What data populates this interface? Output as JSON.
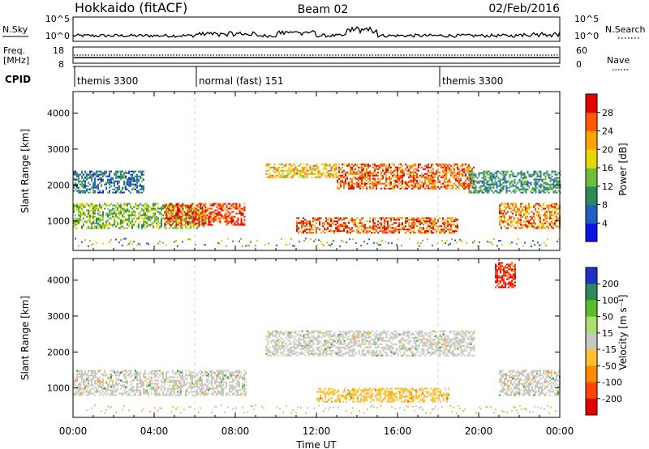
{
  "header": {
    "title": "Hokkaido (fitACF)",
    "beam": "Beam 02",
    "date": "02/Feb/2016"
  },
  "noise_panel": {
    "left_label": "N.Sky",
    "right_label": "N.Search",
    "left_ticks": [
      "10^5",
      "10^0"
    ],
    "right_ticks": [
      "10^5",
      "10^0"
    ]
  },
  "freq_panel": {
    "left_label_1": "Freq.",
    "left_label_2": "[MHz]",
    "right_label": "Nave",
    "left_ticks": [
      "18",
      "8"
    ],
    "right_ticks": [
      "60",
      "0"
    ]
  },
  "cpid_panel": {
    "label": "CPID",
    "modes": [
      {
        "name": "themis 3300",
        "start_hour": 0
      },
      {
        "name": "normal (fast) 151",
        "start_hour": 6
      },
      {
        "name": "themis 3300",
        "start_hour": 18
      }
    ]
  },
  "time_axis": {
    "title": "Time UT",
    "labels": [
      "00:00",
      "04:00",
      "08:00",
      "12:00",
      "16:00",
      "20:00",
      "00:00"
    ]
  },
  "range_axis": {
    "title": "Slant Range [km]",
    "labels": [
      "1000",
      "2000",
      "3000",
      "4000"
    ]
  },
  "power_colorbar": {
    "title": "Power [dB]",
    "labels": [
      "4",
      "8",
      "12",
      "16",
      "20",
      "24",
      "28"
    ],
    "colors": [
      "#0a14e6",
      "#2060c0",
      "#2e8b57",
      "#6fbf3f",
      "#e8d800",
      "#ffa500",
      "#ff5a00",
      "#e60000"
    ]
  },
  "velocity_colorbar": {
    "title": "Velocity [m s⁻¹]",
    "labels": [
      "200",
      "100",
      "50",
      "15",
      "-15",
      "-50",
      "-100",
      "-200"
    ],
    "colors": [
      "#1e32c8",
      "#2e8b57",
      "#5abe2a",
      "#a8e070",
      "#c8c8c0",
      "#ffc030",
      "#ff8c00",
      "#ff4500",
      "#e60000"
    ]
  },
  "chart_data": [
    {
      "type": "heatmap",
      "title": "Power",
      "xlabel": "Time UT",
      "ylabel": "Slant Range [km]",
      "xlim": [
        0,
        24
      ],
      "ylim": [
        180,
        4600
      ],
      "colorbar_label": "Power [dB]",
      "echo_regions": [
        {
          "t_start": 0.0,
          "t_end": 6.5,
          "range_low": 800,
          "range_high": 1500,
          "power_db": 14
        },
        {
          "t_start": 4.5,
          "t_end": 8.5,
          "range_low": 900,
          "range_high": 1500,
          "power_db": 28
        },
        {
          "t_start": 0.0,
          "t_end": 3.5,
          "range_low": 1800,
          "range_high": 2400,
          "power_db": 8
        },
        {
          "t_start": 9.5,
          "t_end": 13.0,
          "range_low": 2200,
          "range_high": 2600,
          "power_db": 20
        },
        {
          "t_start": 13.0,
          "t_end": 19.8,
          "range_low": 1900,
          "range_high": 2600,
          "power_db": 26
        },
        {
          "t_start": 11.0,
          "t_end": 19.0,
          "range_low": 650,
          "range_high": 1100,
          "power_db": 26
        },
        {
          "t_start": 21.0,
          "t_end": 24.0,
          "range_low": 800,
          "range_high": 1500,
          "power_db": 24
        },
        {
          "t_start": 19.5,
          "t_end": 24.0,
          "range_low": 1800,
          "range_high": 2400,
          "power_db": 10
        }
      ]
    },
    {
      "type": "heatmap",
      "title": "Velocity",
      "xlabel": "Time UT",
      "ylabel": "Slant Range [km]",
      "xlim": [
        0,
        24
      ],
      "ylim": [
        180,
        4600
      ],
      "colorbar_label": "Velocity [m s⁻¹]",
      "echo_regions": [
        {
          "t_start": 0.0,
          "t_end": 8.5,
          "range_low": 800,
          "range_high": 1500,
          "velocity": 0
        },
        {
          "t_start": 9.5,
          "t_end": 19.8,
          "range_low": 1900,
          "range_high": 2600,
          "velocity": 0
        },
        {
          "t_start": 12.0,
          "t_end": 18.5,
          "range_low": 600,
          "range_high": 1000,
          "velocity": -60
        },
        {
          "t_start": 20.8,
          "t_end": 21.8,
          "range_low": 3800,
          "range_high": 4500,
          "velocity": -200
        },
        {
          "t_start": 21.0,
          "t_end": 24.0,
          "range_low": 800,
          "range_high": 1500,
          "velocity": 0
        }
      ]
    }
  ]
}
